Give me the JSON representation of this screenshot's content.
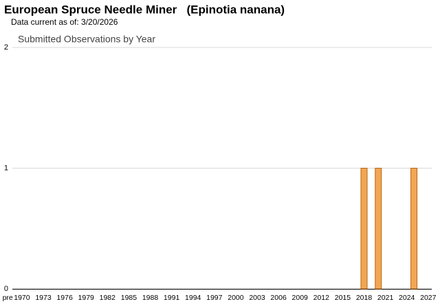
{
  "title": "European Spruce Needle Miner   (Epinotia nanana)",
  "subtitle": "Data current as of: 3/20/2026",
  "chart_data": {
    "type": "bar",
    "title": "Submitted Observations by Year",
    "categories": [
      "pre",
      null,
      "1970",
      null,
      null,
      "1973",
      null,
      null,
      "1976",
      null,
      null,
      "1979",
      null,
      null,
      "1982",
      null,
      null,
      "1985",
      null,
      null,
      "1988",
      null,
      null,
      "1991",
      null,
      null,
      "1994",
      null,
      null,
      "1997",
      null,
      null,
      "2000",
      null,
      null,
      "2003",
      null,
      null,
      "2006",
      null,
      null,
      "2009",
      null,
      null,
      "2012",
      null,
      null,
      "2015",
      null,
      null,
      "2018",
      null,
      null,
      "2021",
      null,
      null,
      "2024",
      null,
      null,
      "2027"
    ],
    "values": [
      0,
      0,
      0,
      0,
      0,
      0,
      0,
      0,
      0,
      0,
      0,
      0,
      0,
      0,
      0,
      0,
      0,
      0,
      0,
      0,
      0,
      0,
      0,
      0,
      0,
      0,
      0,
      0,
      0,
      0,
      0,
      0,
      0,
      0,
      0,
      0,
      0,
      0,
      0,
      0,
      0,
      0,
      0,
      0,
      0,
      0,
      0,
      0,
      0,
      0,
      1,
      0,
      1,
      0,
      0,
      0,
      0,
      1,
      0,
      0
    ],
    "color": "#f2a652",
    "edge_color": "#b5661a",
    "ylim": [
      0,
      2
    ],
    "yticks": [
      0,
      1,
      2
    ],
    "grid": true
  }
}
